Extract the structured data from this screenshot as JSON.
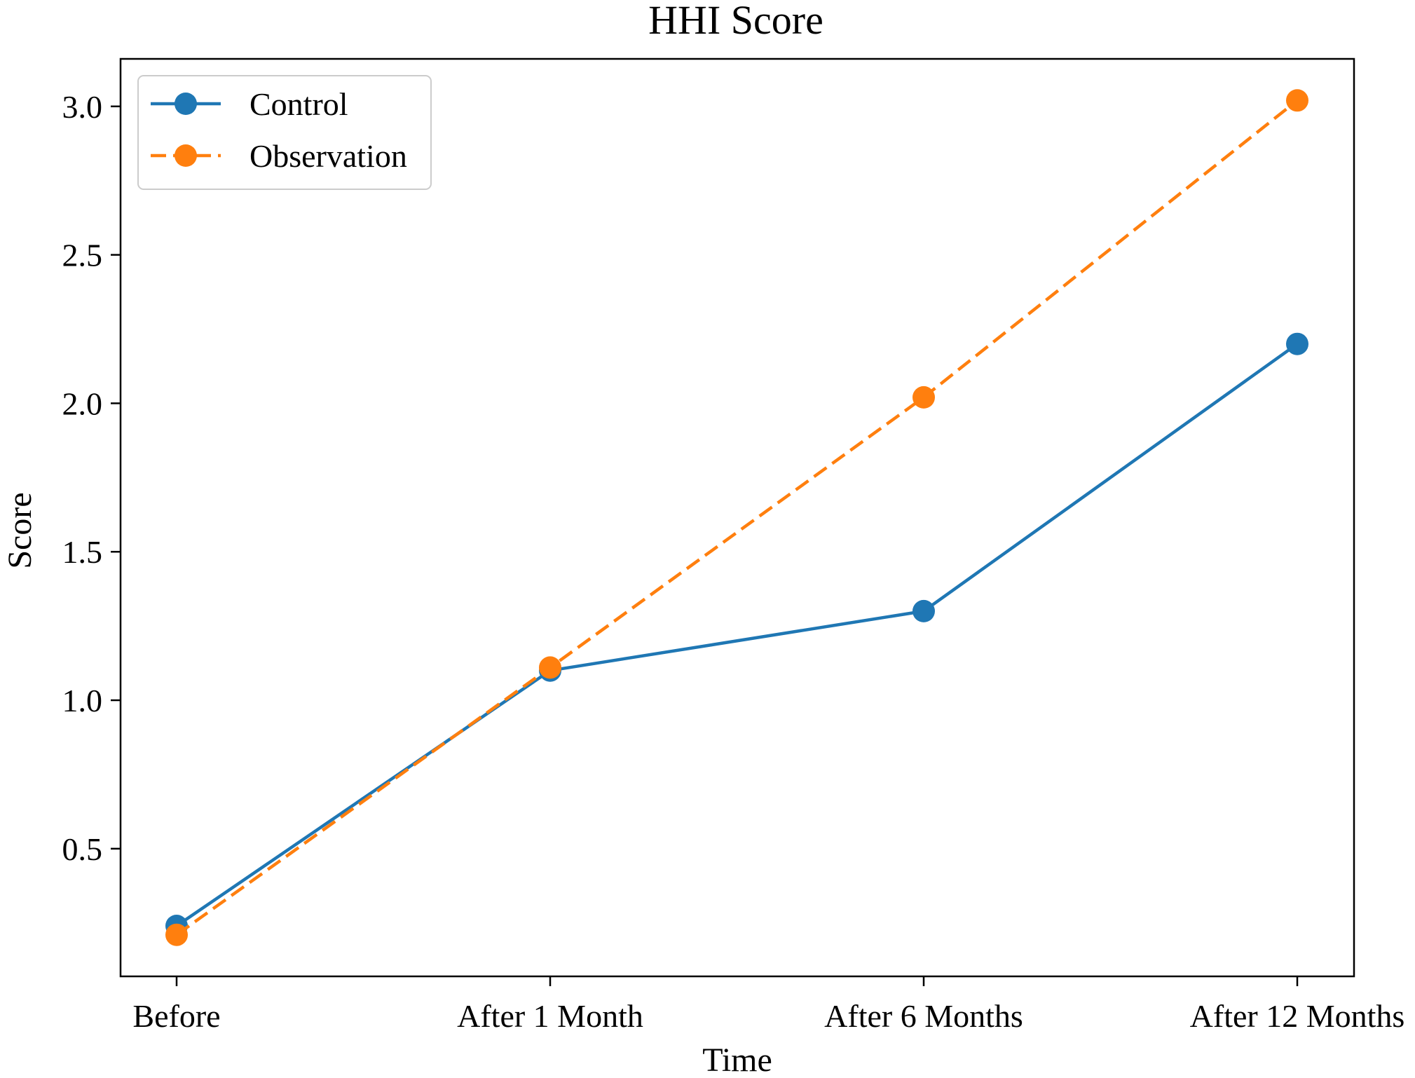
{
  "chart_data": {
    "type": "line",
    "title": "HHI Score",
    "xlabel": "Time",
    "ylabel": "Score",
    "categories": [
      "Before",
      "After 1 Month",
      "After 6 Months",
      "After 12 Months"
    ],
    "ylim": [
      0.07,
      3.16
    ],
    "yticks": [
      "0.5",
      "1.0",
      "1.5",
      "2.0",
      "2.5",
      "3.0"
    ],
    "grid": false,
    "legend_position": "top-left",
    "series": [
      {
        "name": "Control",
        "values": [
          0.24,
          1.1,
          1.3,
          2.2
        ],
        "color": "#1f77b4",
        "line_style": "solid",
        "marker": "circle"
      },
      {
        "name": "Observation",
        "values": [
          0.21,
          1.11,
          2.02,
          3.02
        ],
        "color": "#ff7f0e",
        "line_style": "dashed",
        "marker": "circle"
      }
    ]
  }
}
